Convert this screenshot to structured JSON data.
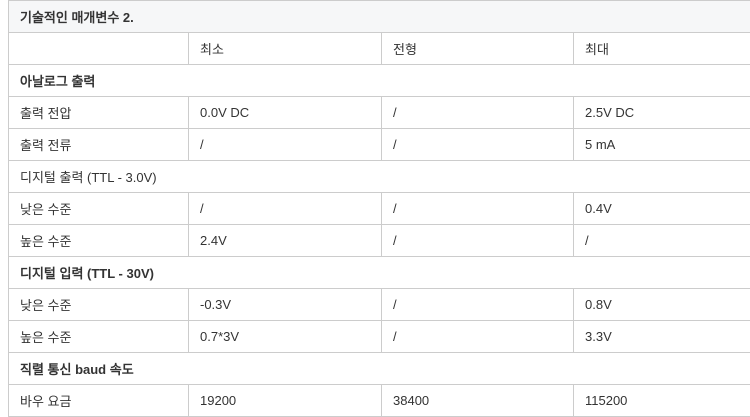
{
  "title": "기술적인 매개변수 2.",
  "header": [
    "",
    "최소",
    "전형",
    "최대"
  ],
  "sections": [
    {
      "label": "아날로그 출력",
      "bold": true,
      "rows": [
        [
          "출력 전압",
          "0.0V DC",
          "/",
          "2.5V DC"
        ],
        [
          "출력 전류",
          "/",
          "/",
          "5 mA"
        ]
      ]
    },
    {
      "label": "디지털 출력 (TTL - 3.0V)",
      "bold": false,
      "rows": [
        [
          "낮은 수준",
          "/",
          "/",
          "0.4V"
        ],
        [
          "높은 수준",
          "2.4V",
          "/",
          "/"
        ]
      ]
    },
    {
      "label": "디지털 입력 (TTL - 30V)",
      "bold": true,
      "rows": [
        [
          "낮은 수준",
          "-0.3V",
          "/",
          "0.8V"
        ],
        [
          "높은 수준",
          "0.7*3V",
          "/",
          "3.3V"
        ]
      ]
    },
    {
      "label": "직렬 통신 baud 속도",
      "bold": true,
      "rows": [
        [
          "바우 요금",
          "19200",
          "38400",
          "115200"
        ]
      ]
    }
  ]
}
